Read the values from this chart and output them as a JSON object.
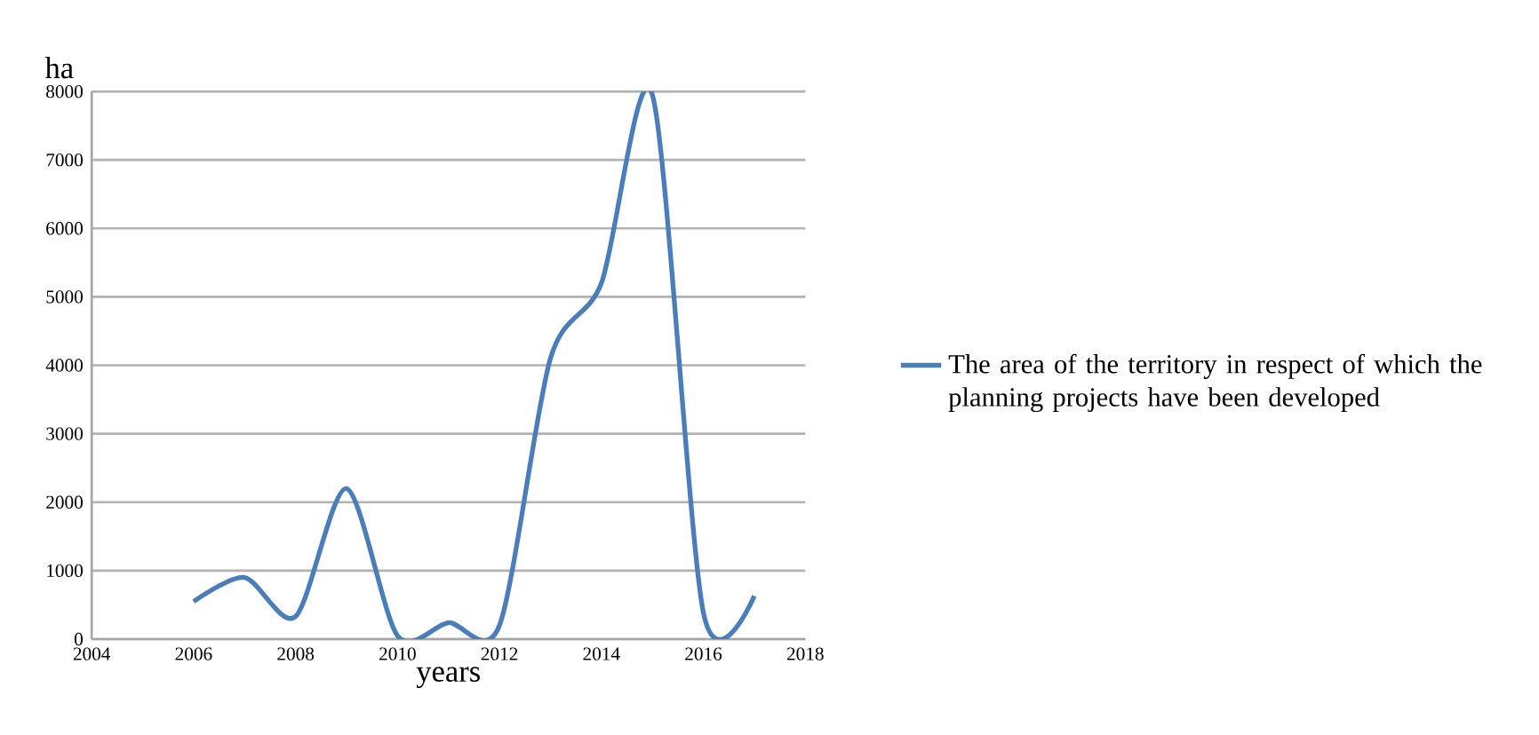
{
  "chart_data": {
    "type": "line",
    "xlabel": "years",
    "ylabel": "ha",
    "x": [
      2006,
      2007,
      2008,
      2009,
      2010,
      2011,
      2012,
      2013,
      2014,
      2015,
      2016,
      2017
    ],
    "series": [
      {
        "name": "The area of the territory in respect of which the planning projects have been developed",
        "color": "#4a7ebb",
        "values": [
          550,
          900,
          330,
          2200,
          50,
          240,
          200,
          4100,
          5200,
          7950,
          390,
          630
        ]
      }
    ],
    "xlim": [
      2004,
      2018
    ],
    "xticks": [
      2004,
      2006,
      2008,
      2010,
      2012,
      2014,
      2016,
      2018
    ],
    "ylim": [
      0,
      8000
    ],
    "yticks": [
      0,
      1000,
      2000,
      3000,
      4000,
      5000,
      6000,
      7000,
      8000
    ],
    "grid": "y",
    "legend": "right",
    "marker": "none",
    "line_style": "solid"
  }
}
